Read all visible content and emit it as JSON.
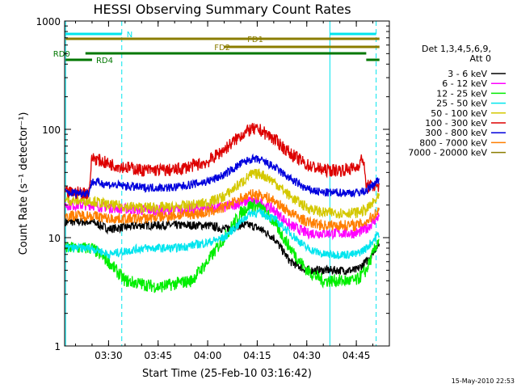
{
  "chart_data": {
    "type": "line",
    "title": "HESSI Observing Summary Count Rates",
    "xlabel": "Start Time (25-Feb-10 03:16:42)",
    "ylabel": "Count Rate (s⁻¹ detector⁻¹)",
    "yscale": "log",
    "ylim": [
      1,
      1000
    ],
    "xlim": [
      "03:16:42",
      "04:55:00"
    ],
    "x_ticks": [
      "03:30",
      "03:45",
      "04:00",
      "04:15",
      "04:30",
      "04:45"
    ],
    "y_ticks": [
      "1",
      "10",
      "100",
      "1000"
    ],
    "legend_header": [
      "Det 1,3,4,5,6,9,",
      "Att 0"
    ],
    "legend_position": "right",
    "series": [
      {
        "name": "3 - 6 keV",
        "color": "#000000",
        "x": [
          "03:17",
          "03:25",
          "03:30",
          "03:40",
          "03:50",
          "04:00",
          "04:05",
          "04:10",
          "04:13",
          "04:16",
          "04:20",
          "04:25",
          "04:30",
          "04:35",
          "04:40",
          "04:45",
          "04:48",
          "04:52"
        ],
        "y": [
          14,
          14,
          12,
          13,
          13,
          13,
          12,
          13,
          13,
          12,
          10,
          6,
          5,
          5,
          5,
          5,
          6,
          9
        ]
      },
      {
        "name": "6 - 12 keV",
        "color": "#ff00ff",
        "x": [
          "03:17",
          "03:25",
          "03:30",
          "03:40",
          "03:50",
          "04:00",
          "04:05",
          "04:10",
          "04:13",
          "04:16",
          "04:20",
          "04:25",
          "04:30",
          "04:35",
          "04:40",
          "04:45",
          "04:48",
          "04:52"
        ],
        "y": [
          20,
          20,
          19,
          18,
          18,
          19,
          19,
          21,
          22,
          21,
          18,
          13,
          11,
          11,
          11,
          11,
          12,
          16
        ]
      },
      {
        "name": "12 - 25 keV",
        "color": "#00ee00",
        "x": [
          "03:17",
          "03:25",
          "03:30",
          "03:35",
          "03:45",
          "03:55",
          "04:00",
          "04:05",
          "04:10",
          "04:13",
          "04:16",
          "04:20",
          "04:25",
          "04:30",
          "04:35",
          "04:40",
          "04:45",
          "04:48",
          "04:52"
        ],
        "y": [
          8,
          8,
          6,
          4,
          3.5,
          4,
          6,
          10,
          17,
          20,
          19,
          14,
          8,
          5,
          4,
          4,
          4,
          5,
          10
        ]
      },
      {
        "name": "25 - 50 keV",
        "color": "#00e5ee",
        "x": [
          "03:17",
          "03:25",
          "03:30",
          "03:40",
          "03:50",
          "04:00",
          "04:05",
          "04:10",
          "04:13",
          "04:16",
          "04:20",
          "04:25",
          "04:30",
          "04:35",
          "04:40",
          "04:45",
          "04:48",
          "04:52"
        ],
        "y": [
          8,
          8,
          7,
          8,
          8,
          9,
          10,
          14,
          17,
          17,
          15,
          11,
          8,
          7,
          7,
          7,
          8,
          11
        ]
      },
      {
        "name": "50 - 100 keV",
        "color": "#d4c800",
        "x": [
          "03:17",
          "03:25",
          "03:30",
          "03:40",
          "03:50",
          "04:00",
          "04:05",
          "04:10",
          "04:13",
          "04:16",
          "04:20",
          "04:25",
          "04:30",
          "04:35",
          "04:40",
          "04:45",
          "04:48",
          "04:52"
        ],
        "y": [
          22,
          22,
          20,
          19,
          19,
          21,
          24,
          32,
          38,
          39,
          33,
          24,
          19,
          17,
          17,
          17,
          18,
          24
        ]
      },
      {
        "name": "100 - 300 keV",
        "color": "#dd0000",
        "x": [
          "03:17",
          "03:24",
          "03:25",
          "03:30",
          "03:40",
          "03:50",
          "04:00",
          "04:05",
          "04:10",
          "04:13",
          "04:16",
          "04:20",
          "04:25",
          "04:30",
          "04:35",
          "04:40",
          "04:45",
          "04:47",
          "04:48",
          "04:52"
        ],
        "y": [
          26,
          26,
          55,
          48,
          42,
          42,
          50,
          65,
          88,
          100,
          98,
          82,
          60,
          47,
          42,
          42,
          44,
          55,
          30,
          30
        ]
      },
      {
        "name": "300 - 800 keV",
        "color": "#0000dd",
        "x": [
          "03:17",
          "03:24",
          "03:25",
          "03:30",
          "03:40",
          "03:50",
          "04:00",
          "04:05",
          "04:10",
          "04:13",
          "04:16",
          "04:20",
          "04:25",
          "04:30",
          "04:35",
          "04:40",
          "04:45",
          "04:48",
          "04:52"
        ],
        "y": [
          26,
          26,
          33,
          31,
          29,
          29,
          33,
          38,
          48,
          53,
          52,
          45,
          35,
          28,
          26,
          26,
          26,
          27,
          35
        ]
      },
      {
        "name": "800 - 7000 keV",
        "color": "#ff7f00",
        "x": [
          "03:17",
          "03:25",
          "03:30",
          "03:40",
          "03:50",
          "04:00",
          "04:05",
          "04:10",
          "04:13",
          "04:16",
          "04:20",
          "04:25",
          "04:30",
          "04:35",
          "04:40",
          "04:45",
          "04:48",
          "04:52"
        ],
        "y": [
          16,
          16,
          15,
          15,
          16,
          17,
          19,
          23,
          25,
          25,
          22,
          17,
          14,
          13,
          13,
          13,
          14,
          18
        ]
      },
      {
        "name": "7000 - 20000 keV",
        "color": "#8b7d00",
        "x": [],
        "y": []
      }
    ],
    "vlines": [
      {
        "time": "03:17",
        "color": "#00e5ee",
        "style": "solid"
      },
      {
        "time": "03:34",
        "color": "#00e5ee",
        "style": "dashed"
      },
      {
        "time": "04:37",
        "color": "#00e5ee",
        "style": "solid"
      },
      {
        "time": "04:51",
        "color": "#00e5ee",
        "style": "dashed"
      }
    ],
    "flag_bars": [
      {
        "label": "N",
        "color": "#00e5ee",
        "segments": [
          [
            "03:17",
            "03:34"
          ],
          [
            "04:37",
            "04:51"
          ]
        ],
        "level": 1
      },
      {
        "label": "FD1",
        "color": "#8b7d00",
        "segments": [
          [
            "03:17",
            "04:52"
          ]
        ],
        "level": 2
      },
      {
        "label": "FD2",
        "color": "#8b7d00",
        "segments": [
          [
            "04:05",
            "04:52"
          ]
        ],
        "level": 3
      },
      {
        "label": "RD0",
        "color": "#007700",
        "segments": [
          [
            "03:23",
            "04:48"
          ]
        ],
        "level": 4
      },
      {
        "label": "RD4",
        "color": "#007700",
        "segments": [
          [
            "03:17",
            "03:25"
          ],
          [
            "04:48",
            "04:52"
          ]
        ],
        "level": 5
      }
    ]
  },
  "footer_timestamp": "15-May-2010 22:53"
}
